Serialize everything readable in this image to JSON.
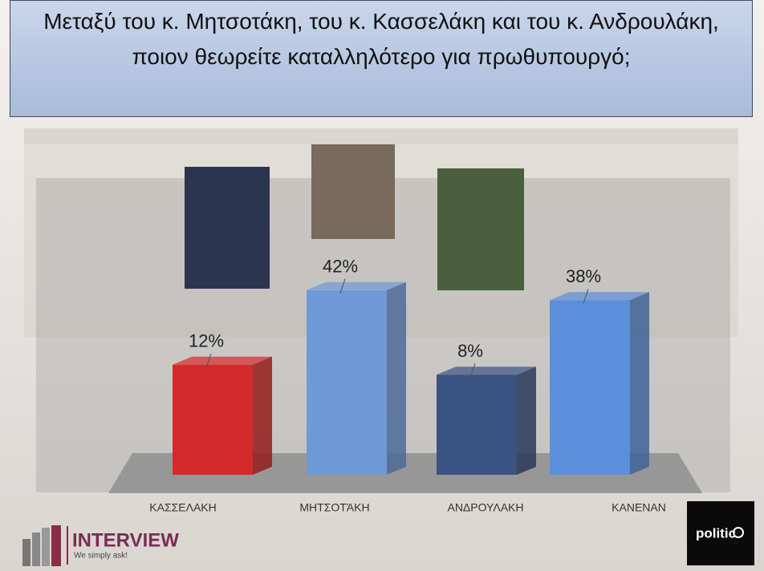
{
  "chart_data": {
    "type": "bar3d",
    "title": "Μεταξύ του κ. Μητσοτάκη, του κ. Κασσελάκη και του κ. Ανδρουλάκη, ποιον θεωρείτε καταλληλότερο για πρωθυπουργό;",
    "categories": [
      "ΚΑΣΣΕΛΑΚΗ",
      "ΜΗΤΣΟΤΆΚΗ",
      "ΑΝΔΡΟΥΛΑΚΗ",
      "ΚΑΝΕΝΑΝ"
    ],
    "values": [
      12,
      42,
      8,
      38
    ],
    "value_labels": [
      "12%",
      "42%",
      "8%",
      "38%"
    ],
    "colors": [
      "#d42a2a",
      "#6f9ad6",
      "#3a5382",
      "#5b8fdb"
    ]
  },
  "footer": {
    "brand": "INTERVIEW",
    "tagline": "We simply ask!",
    "partner": "politic"
  }
}
